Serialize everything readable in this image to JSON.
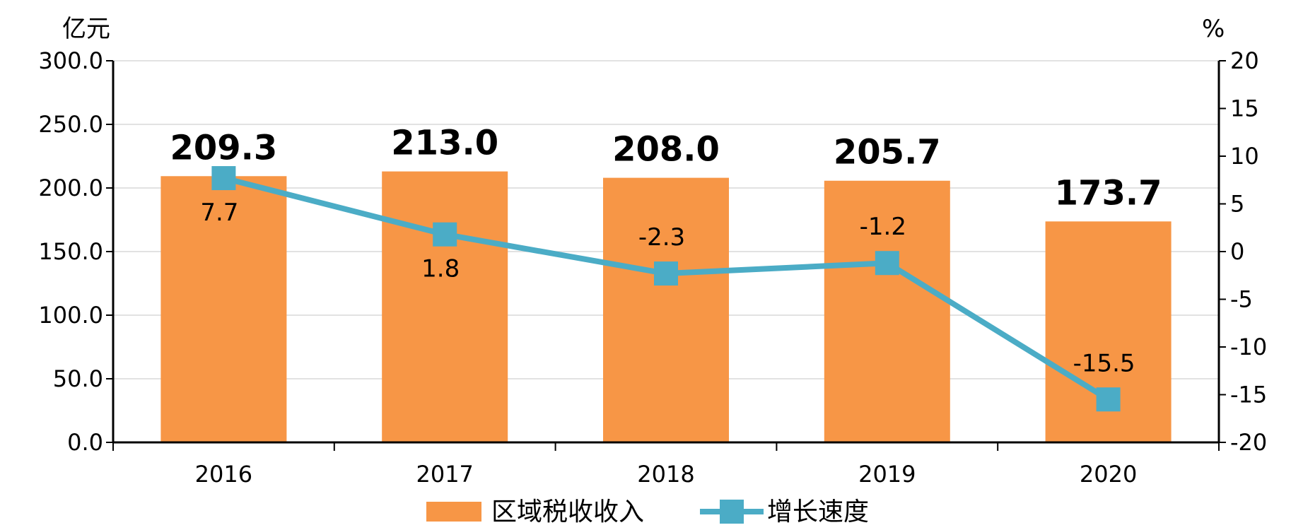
{
  "chart_data": {
    "type": "bar",
    "categories": [
      "2016",
      "2017",
      "2018",
      "2019",
      "2020"
    ],
    "series": [
      {
        "name": "区域税收收入",
        "type": "bar",
        "axis": "left",
        "values": [
          209.3,
          213.0,
          208.0,
          205.7,
          173.7
        ],
        "labels": [
          "209.3",
          "213.0",
          "208.0",
          "205.7",
          "173.7"
        ],
        "color": "#F79646"
      },
      {
        "name": "增长速度",
        "type": "line",
        "axis": "right",
        "values": [
          7.7,
          1.8,
          -2.3,
          -1.2,
          -15.5
        ],
        "labels": [
          "7.7",
          "1.8",
          "-2.3",
          "-1.2",
          "-15.5"
        ],
        "color": "#4BACC6"
      }
    ],
    "left_axis": {
      "unit": "亿元",
      "min": 0,
      "max": 300,
      "ticks": [
        "0.0",
        "50.0",
        "100.0",
        "150.0",
        "200.0",
        "250.0",
        "300.0"
      ]
    },
    "right_axis": {
      "unit": "%",
      "min": -20,
      "max": 20,
      "ticks": [
        "-20",
        "-15",
        "-10",
        "-5",
        "0",
        "5",
        "10",
        "15",
        "20"
      ]
    },
    "grid": true,
    "legend_position": "bottom"
  }
}
